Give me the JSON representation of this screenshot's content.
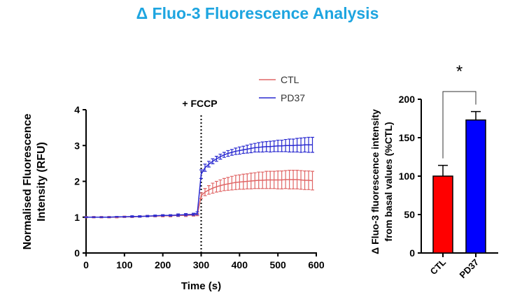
{
  "title": "Δ Fluo-3 Fluorescence Analysis",
  "chart_data": [
    {
      "type": "line",
      "xlabel": "Time (s)",
      "ylabel": "Normalised Fluorescence Intensity (RFU)",
      "xlim": [
        0,
        600
      ],
      "ylim": [
        0,
        4
      ],
      "xticks": [
        0,
        100,
        200,
        300,
        400,
        500,
        600
      ],
      "yticks": [
        0,
        1,
        2,
        3,
        4
      ],
      "annotation": {
        "label": "+ FCCP",
        "x": 300
      },
      "legend": {
        "placement": "top-right"
      },
      "x": [
        0,
        20,
        40,
        60,
        80,
        100,
        120,
        140,
        160,
        180,
        200,
        220,
        240,
        260,
        280,
        290,
        300,
        310,
        320,
        330,
        340,
        350,
        360,
        370,
        380,
        390,
        400,
        410,
        420,
        430,
        440,
        450,
        460,
        470,
        480,
        490,
        500,
        510,
        520,
        530,
        540,
        550,
        560,
        570,
        580,
        590
      ],
      "series": [
        {
          "name": "CTL",
          "color": "#e06666",
          "values": [
            1.0,
            1.0,
            1.0,
            1.0,
            1.0,
            1.01,
            1.01,
            1.02,
            1.03,
            1.03,
            1.04,
            1.04,
            1.05,
            1.05,
            1.06,
            1.07,
            1.6,
            1.7,
            1.76,
            1.81,
            1.85,
            1.88,
            1.91,
            1.93,
            1.95,
            1.97,
            1.98,
            1.99,
            2.0,
            2.01,
            2.02,
            2.03,
            2.03,
            2.04,
            2.04,
            2.04,
            2.04,
            2.04,
            2.05,
            2.05,
            2.05,
            2.05,
            2.04,
            2.03,
            2.03,
            2.02
          ],
          "error": [
            0.02,
            0.02,
            0.02,
            0.02,
            0.02,
            0.02,
            0.02,
            0.02,
            0.02,
            0.02,
            0.03,
            0.03,
            0.03,
            0.03,
            0.03,
            0.03,
            0.08,
            0.1,
            0.12,
            0.14,
            0.15,
            0.16,
            0.17,
            0.18,
            0.19,
            0.2,
            0.2,
            0.21,
            0.21,
            0.22,
            0.22,
            0.23,
            0.23,
            0.24,
            0.24,
            0.24,
            0.25,
            0.25,
            0.25,
            0.26,
            0.26,
            0.26,
            0.26,
            0.26,
            0.26,
            0.26
          ]
        },
        {
          "name": "PD37",
          "color": "#2a2ad0",
          "values": [
            1.0,
            1.0,
            1.0,
            1.0,
            1.01,
            1.01,
            1.02,
            1.02,
            1.03,
            1.04,
            1.05,
            1.05,
            1.06,
            1.07,
            1.08,
            1.11,
            2.2,
            2.38,
            2.48,
            2.56,
            2.63,
            2.69,
            2.74,
            2.78,
            2.81,
            2.84,
            2.86,
            2.88,
            2.9,
            2.92,
            2.94,
            2.95,
            2.96,
            2.97,
            2.97,
            2.98,
            2.99,
            2.99,
            3.0,
            3.0,
            3.0,
            3.01,
            3.01,
            3.02,
            3.02,
            3.02
          ],
          "error": [
            0.01,
            0.01,
            0.01,
            0.01,
            0.01,
            0.01,
            0.02,
            0.02,
            0.02,
            0.02,
            0.02,
            0.02,
            0.03,
            0.03,
            0.03,
            0.04,
            0.12,
            0.1,
            0.08,
            0.07,
            0.07,
            0.07,
            0.07,
            0.08,
            0.08,
            0.09,
            0.1,
            0.1,
            0.11,
            0.12,
            0.12,
            0.13,
            0.14,
            0.14,
            0.15,
            0.15,
            0.16,
            0.16,
            0.17,
            0.18,
            0.18,
            0.19,
            0.2,
            0.2,
            0.21,
            0.21
          ]
        }
      ]
    },
    {
      "type": "bar",
      "ylabel": "Δ Fluo-3 fluorescence intensity from basal values (%CTL)",
      "ylim": [
        0,
        200
      ],
      "yticks": [
        0,
        50,
        100,
        150,
        200
      ],
      "categories": [
        "CTL",
        "PD37"
      ],
      "values": [
        100,
        173
      ],
      "error": [
        14,
        11
      ],
      "colors": [
        "#ff0000",
        "#0000ff"
      ],
      "significance": "*"
    }
  ]
}
